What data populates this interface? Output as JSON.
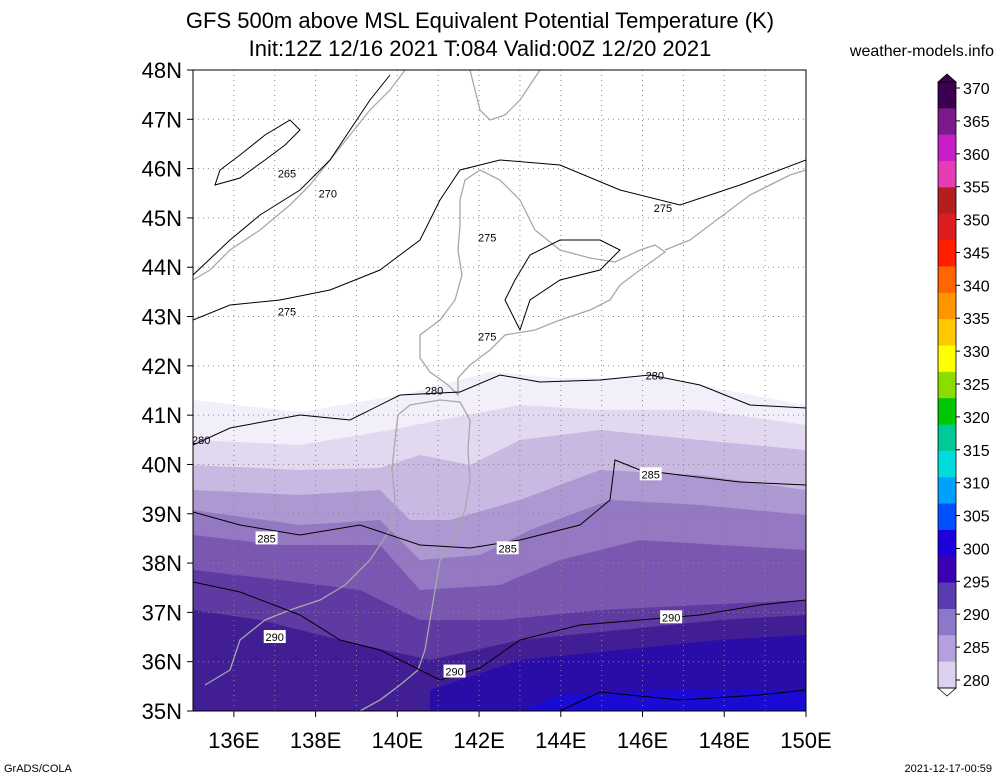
{
  "header": {
    "title_line1": "GFS 500m above MSL Equivalent Potential Temperature (K)",
    "title_line2": "Init:12Z 12/16 2021 T:084 Valid:00Z 12/20 2021",
    "site": "weather-models.info"
  },
  "footer": {
    "left": "GrADS/COLA",
    "right": "2021-12-17-00:59"
  },
  "map": {
    "lat_labels": [
      "48N",
      "47N",
      "46N",
      "45N",
      "44N",
      "43N",
      "42N",
      "41N",
      "40N",
      "39N",
      "38N",
      "37N",
      "36N",
      "35N"
    ],
    "lon_labels": [
      "136E",
      "138E",
      "140E",
      "142E",
      "144E",
      "146E",
      "148E",
      "150E"
    ],
    "lat_range": [
      35,
      48
    ],
    "lon_range": [
      135,
      150
    ],
    "contour_labels": [
      {
        "text": "265",
        "lon": 137.3,
        "lat": 45.9
      },
      {
        "text": "270",
        "lon": 138.3,
        "lat": 45.5
      },
      {
        "text": "275",
        "lon": 137.3,
        "lat": 43.1
      },
      {
        "text": "275",
        "lon": 146.5,
        "lat": 45.2
      },
      {
        "text": "275",
        "lon": 142.2,
        "lat": 44.6
      },
      {
        "text": "275",
        "lon": 142.2,
        "lat": 42.6
      },
      {
        "text": "280",
        "lon": 140.9,
        "lat": 41.5
      },
      {
        "text": "280",
        "lon": 146.3,
        "lat": 41.8
      },
      {
        "text": "280",
        "lon": 135.2,
        "lat": 40.5
      },
      {
        "text": "285",
        "lon": 146.2,
        "lat": 39.8
      },
      {
        "text": "285",
        "lon": 136.8,
        "lat": 38.5
      },
      {
        "text": "285",
        "lon": 142.7,
        "lat": 38.3
      },
      {
        "text": "290",
        "lon": 146.7,
        "lat": 36.9
      },
      {
        "text": "290",
        "lon": 137.0,
        "lat": 36.5
      },
      {
        "text": "290",
        "lon": 141.4,
        "lat": 35.8
      }
    ]
  },
  "colorbar": {
    "labels": [
      "370",
      "365",
      "360",
      "355",
      "350",
      "345",
      "340",
      "335",
      "330",
      "325",
      "320",
      "315",
      "310",
      "305",
      "300",
      "295",
      "290",
      "285",
      "280"
    ],
    "colors": [
      "#3c0050",
      "#7a1a8c",
      "#c81ec8",
      "#e63cb4",
      "#b41e1e",
      "#dc1e1e",
      "#ff1e00",
      "#ff6400",
      "#ff9600",
      "#ffc800",
      "#ffff00",
      "#8cdc00",
      "#00c800",
      "#00c896",
      "#00dcdc",
      "#00a0ff",
      "#0050ff",
      "#1e00dc",
      "#3c00b4",
      "#5a3cb4",
      "#8c78c8",
      "#b4a0dc",
      "#dcd2f0"
    ]
  }
}
